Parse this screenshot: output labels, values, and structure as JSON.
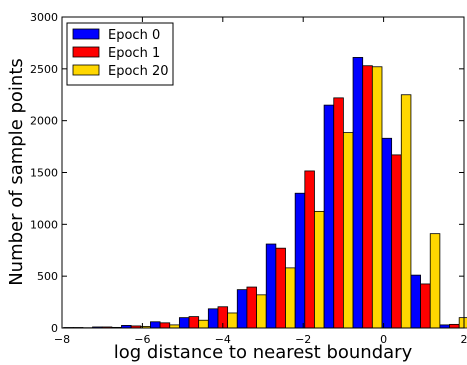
{
  "chart_data": {
    "type": "bar",
    "title": "",
    "xlabel": "log distance to nearest boundary",
    "ylabel": "Number of sample points",
    "xlim": [
      -8,
      2
    ],
    "ylim": [
      0,
      3000
    ],
    "xticks": [
      -8,
      -6,
      -4,
      -2,
      0,
      2
    ],
    "xtick_labels": [
      "−8",
      "−6",
      "−4",
      "−2",
      "0",
      "2"
    ],
    "yticks": [
      0,
      500,
      1000,
      1500,
      2000,
      2500,
      3000
    ],
    "ytick_labels": [
      "0",
      "500",
      "1000",
      "1500",
      "2000",
      "2500",
      "3000"
    ],
    "grid": false,
    "legend_position": "upper-left",
    "bin_centers": [
      -7.6,
      -6.88,
      -6.16,
      -5.44,
      -4.72,
      -4.0,
      -3.28,
      -2.56,
      -1.84,
      -1.12,
      -0.4,
      0.32,
      1.04,
      1.76
    ],
    "series": [
      {
        "name": "Epoch 0",
        "color": "#0000ff",
        "values": [
          5,
          10,
          25,
          60,
          100,
          185,
          370,
          810,
          1300,
          2150,
          2610,
          1830,
          510,
          30
        ]
      },
      {
        "name": "Epoch 1",
        "color": "#ff0000",
        "values": [
          5,
          10,
          20,
          50,
          110,
          205,
          395,
          770,
          1515,
          2220,
          2530,
          1670,
          425,
          35
        ]
      },
      {
        "name": "Epoch 20",
        "color": "#ffd700",
        "values": [
          3,
          6,
          15,
          30,
          75,
          145,
          320,
          580,
          1125,
          1885,
          2520,
          2250,
          910,
          100
        ]
      }
    ]
  }
}
